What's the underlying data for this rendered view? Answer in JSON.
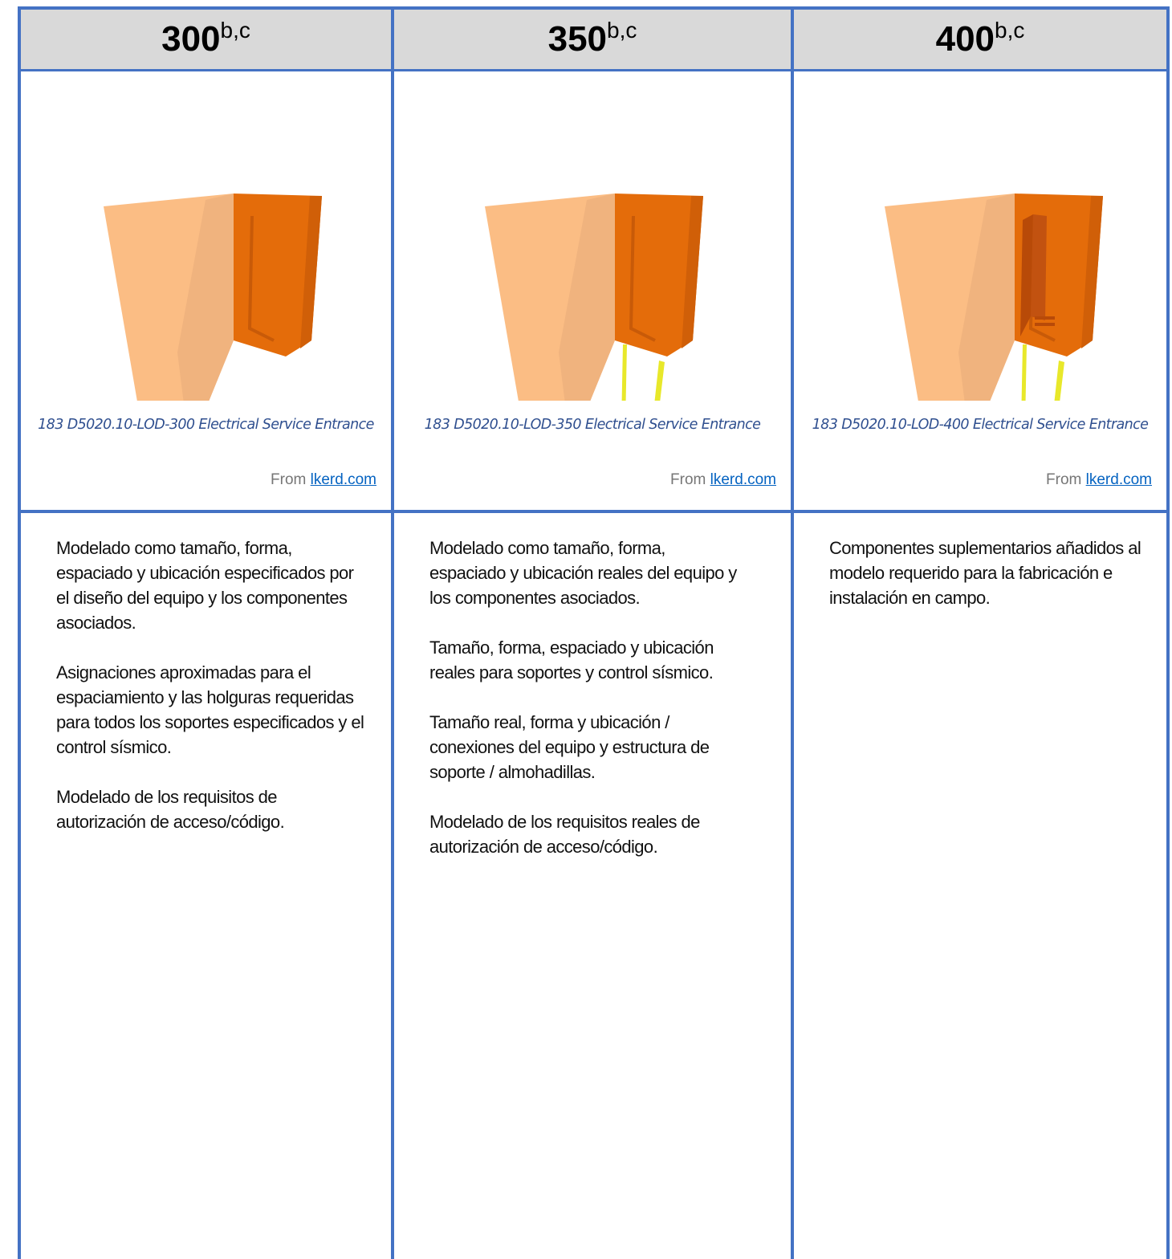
{
  "columns": [
    {
      "level": "300",
      "superscript": "b,c",
      "caption": "183 D5020.10-LOD-300 Electrical Service Entrance",
      "source": "From",
      "link": "lkerd.com",
      "paragraphs": [
        "Modelado como tamaño, forma, espaciado y ubicación especificados por el diseño del equipo y los componentes asociados.",
        "Asignaciones aproximadas para el espaciamiento y las holguras requeridas para todos los soportes especificados y el control sísmico.",
        "Modelado de los requisitos de autorización de acceso/código."
      ]
    },
    {
      "level": "350",
      "superscript": "b,c",
      "caption": "183 D5020.10-LOD-350 Electrical Service Entrance",
      "source": "From",
      "link": "lkerd.com",
      "paragraphs": [
        "Modelado como tamaño, forma, espaciado y ubicación reales del equipo y los componentes asociados.",
        "Tamaño, forma, espaciado y ubicación reales para soportes y control sísmico.",
        "Tamaño real, forma y ubicación / conexiones del equipo y estructura de soporte / almohadillas.",
        "Modelado de los requisitos reales de autorización de acceso/código."
      ]
    },
    {
      "level": "400",
      "superscript": "b,c",
      "caption": "183 D5020.10-LOD-400 Electrical Service Entrance",
      "source": "From",
      "link": "lkerd.com",
      "paragraphs": [
        "Componentes suplementarios añadidos al modelo requerido para la fabricación e instalación en campo."
      ]
    }
  ]
}
